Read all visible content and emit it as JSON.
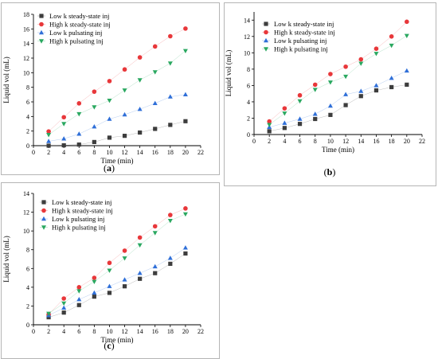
{
  "chart_data": [
    {
      "type": "scatter",
      "panel_label": "(a)",
      "xlabel": "Time (min)",
      "ylabel": "Liquid vol (mL)",
      "xlim": [
        0,
        22
      ],
      "ylim": [
        0,
        18
      ],
      "xticks": [
        0,
        2,
        4,
        6,
        8,
        10,
        12,
        14,
        16,
        18,
        20,
        22
      ],
      "yticks": [
        0,
        2,
        4,
        6,
        8,
        10,
        12,
        14,
        16,
        18
      ],
      "legend_position": "top-left",
      "x": [
        2,
        4,
        6,
        8,
        10,
        12,
        14,
        16,
        18,
        20
      ],
      "series": [
        {
          "name": "Low k steady-state inj",
          "marker": "square",
          "color": "#3d3d3d",
          "values": [
            0.0,
            0.05,
            0.15,
            0.5,
            1.1,
            1.35,
            1.8,
            2.3,
            2.85,
            3.35
          ]
        },
        {
          "name": "High k steady-state inj",
          "marker": "circle",
          "color": "#e8373a",
          "values": [
            1.95,
            3.9,
            5.8,
            7.4,
            8.85,
            10.45,
            12.1,
            13.6,
            15.0,
            16.05
          ]
        },
        {
          "name": "Low k pulsating inj",
          "marker": "triangle-up",
          "color": "#2f6fd8",
          "values": [
            0.6,
            0.95,
            1.6,
            2.6,
            3.65,
            4.25,
            5.0,
            5.8,
            6.7,
            7.0
          ]
        },
        {
          "name": "High k pulsating inj",
          "marker": "triangle-down",
          "color": "#2aa860",
          "values": [
            1.5,
            3.0,
            4.35,
            5.3,
            6.2,
            7.6,
            9.0,
            10.1,
            11.3,
            13.0
          ]
        }
      ]
    },
    {
      "type": "scatter",
      "panel_label": "(b)",
      "xlabel": "Time (min)",
      "ylabel": "Liquid vol (mL)",
      "xlim": [
        0,
        22
      ],
      "ylim": [
        0,
        15
      ],
      "xticks": [
        0,
        2,
        4,
        6,
        8,
        10,
        12,
        14,
        16,
        18,
        20,
        22
      ],
      "yticks": [
        0,
        2,
        4,
        6,
        8,
        10,
        12,
        14
      ],
      "legend_position": "top-left",
      "x": [
        2,
        4,
        6,
        8,
        10,
        12,
        14,
        16,
        18,
        20
      ],
      "series": [
        {
          "name": "Low k steady-state inj",
          "marker": "square",
          "color": "#3d3d3d",
          "values": [
            0.4,
            0.8,
            1.3,
            1.9,
            2.4,
            3.6,
            4.7,
            5.4,
            5.8,
            6.1
          ]
        },
        {
          "name": "High k steady-state inj",
          "marker": "circle",
          "color": "#e8373a",
          "values": [
            1.6,
            3.2,
            4.8,
            6.1,
            7.4,
            8.3,
            9.2,
            10.5,
            12.0,
            13.8
          ]
        },
        {
          "name": "Low k pulsating inj",
          "marker": "triangle-up",
          "color": "#2f6fd8",
          "values": [
            0.9,
            1.4,
            1.9,
            2.5,
            3.5,
            4.9,
            5.3,
            6.0,
            6.9,
            7.8
          ]
        },
        {
          "name": "High k pulsating inj",
          "marker": "triangle-down",
          "color": "#2aa860",
          "values": [
            1.2,
            2.6,
            4.1,
            5.5,
            6.4,
            7.1,
            8.7,
            9.9,
            10.9,
            12.1
          ]
        }
      ]
    },
    {
      "type": "scatter",
      "panel_label": "(c)",
      "xlabel": "Time (min)",
      "ylabel": "Liquid vol (mL)",
      "xlim": [
        0,
        22
      ],
      "ylim": [
        0,
        14
      ],
      "xticks": [
        0,
        2,
        4,
        6,
        8,
        10,
        12,
        14,
        16,
        18,
        20,
        22
      ],
      "yticks": [
        0,
        2,
        4,
        6,
        8,
        10,
        12,
        14
      ],
      "legend_position": "top-left",
      "x": [
        2,
        4,
        6,
        8,
        10,
        12,
        14,
        16,
        18,
        20
      ],
      "series": [
        {
          "name": "Low k steady-state inj",
          "marker": "square",
          "color": "#3d3d3d",
          "values": [
            0.8,
            1.3,
            2.1,
            3.0,
            3.4,
            4.1,
            4.9,
            5.5,
            6.5,
            7.6
          ]
        },
        {
          "name": "High k steady-state inj",
          "marker": "circle",
          "color": "#e8373a",
          "values": [
            1.1,
            2.8,
            4.0,
            5.0,
            6.6,
            7.9,
            9.3,
            10.5,
            11.7,
            12.4
          ]
        },
        {
          "name": "Low k pulsating inj",
          "marker": "triangle-up",
          "color": "#2f6fd8",
          "values": [
            1.0,
            1.8,
            2.7,
            3.4,
            4.1,
            4.8,
            5.5,
            6.2,
            7.1,
            8.2
          ]
        },
        {
          "name": "High k pulsating inj",
          "marker": "triangle-down",
          "color": "#2aa860",
          "values": [
            1.2,
            2.3,
            3.6,
            4.6,
            5.8,
            7.1,
            8.5,
            9.8,
            11.1,
            11.8
          ]
        }
      ]
    }
  ]
}
